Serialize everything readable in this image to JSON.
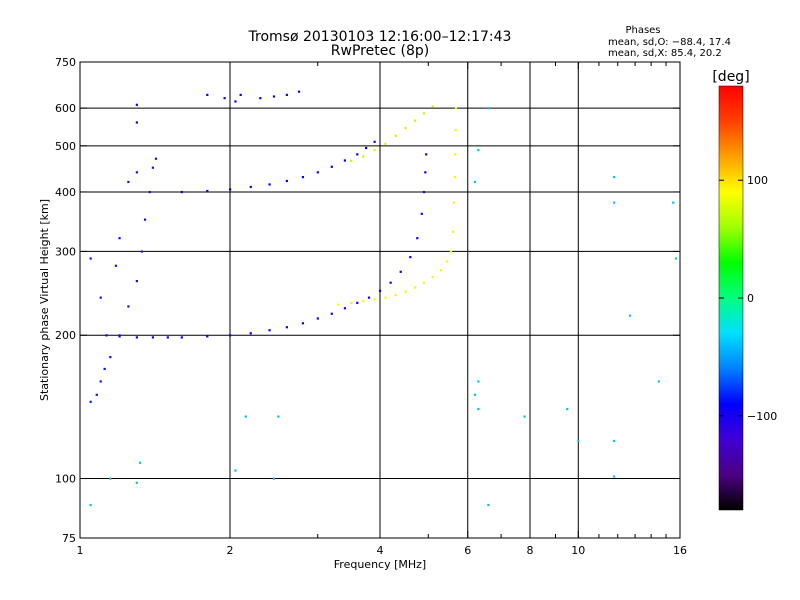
{
  "chart_data": {
    "type": "scatter",
    "title": "Tromsø 20130103 12:16:00–12:17:43",
    "subtitle": "RwPretec (8p)",
    "stats": {
      "heading": "Phases",
      "line1": "mean, sd,O: −88.4, 17.4",
      "line2": "mean, sd,X:  85.4, 20.2"
    },
    "xlabel": "Frequency [MHz]",
    "ylabel": "Stationary phase Virtual Height [km]",
    "x_scale": "log",
    "y_scale": "log",
    "xlim": [
      1,
      16
    ],
    "ylim": [
      75,
      750
    ],
    "x_ticks": [
      1,
      2,
      4,
      6,
      8,
      10,
      16
    ],
    "x_tick_labels": [
      "1",
      "2",
      "4",
      "6",
      "8",
      "10",
      "16"
    ],
    "x_grid": [
      2,
      4,
      6,
      8,
      10
    ],
    "x_minor_ticks": [
      3,
      5,
      7,
      9,
      11,
      12,
      13,
      14,
      15
    ],
    "y_ticks": [
      75,
      100,
      200,
      300,
      400,
      500,
      600,
      750
    ],
    "y_tick_labels": [
      "75",
      "100",
      "200",
      "300",
      "400",
      "500",
      "600",
      "750"
    ],
    "y_grid": [
      100,
      200,
      300,
      400,
      500,
      600
    ],
    "grid": true,
    "colorbar": {
      "label": "[deg]",
      "range": [
        -180,
        180
      ],
      "ticks": [
        -100,
        0,
        100
      ],
      "tick_labels": [
        "−100",
        "0",
        "100"
      ],
      "colormap": [
        "#000000",
        "#4b0082",
        "#3f00d6",
        "#0000ff",
        "#0080ff",
        "#00e0ff",
        "#00ff80",
        "#00ff00",
        "#a0ff00",
        "#ffff00",
        "#ffa000",
        "#ff4000",
        "#ff0000"
      ]
    },
    "series": [
      {
        "kind": "F-layer O-mode trace",
        "phase": -95,
        "points": [
          [
            1.13,
            200
          ],
          [
            1.2,
            199
          ],
          [
            1.3,
            198
          ],
          [
            1.4,
            198
          ],
          [
            1.5,
            198
          ],
          [
            1.6,
            198
          ],
          [
            1.8,
            199
          ],
          [
            2.0,
            200
          ],
          [
            2.2,
            202
          ],
          [
            2.4,
            205
          ],
          [
            2.6,
            208
          ],
          [
            2.8,
            212
          ],
          [
            3.0,
            217
          ],
          [
            3.2,
            222
          ],
          [
            3.4,
            228
          ],
          [
            3.6,
            234
          ],
          [
            3.8,
            240
          ],
          [
            4.0,
            248
          ],
          [
            4.2,
            258
          ],
          [
            4.4,
            272
          ],
          [
            4.6,
            292
          ],
          [
            4.75,
            320
          ],
          [
            4.85,
            360
          ],
          [
            4.9,
            400
          ],
          [
            4.93,
            440
          ],
          [
            4.95,
            480
          ]
        ]
      },
      {
        "kind": "F-layer X-mode trace",
        "phase": 85,
        "points": [
          [
            3.3,
            232
          ],
          [
            3.5,
            234
          ],
          [
            3.7,
            236
          ],
          [
            3.9,
            238
          ],
          [
            4.1,
            240
          ],
          [
            4.3,
            243
          ],
          [
            4.5,
            247
          ],
          [
            4.7,
            252
          ],
          [
            4.9,
            258
          ],
          [
            5.1,
            265
          ],
          [
            5.3,
            274
          ],
          [
            5.45,
            286
          ],
          [
            5.55,
            300
          ],
          [
            5.6,
            330
          ],
          [
            5.63,
            380
          ],
          [
            5.65,
            430
          ],
          [
            5.66,
            480
          ],
          [
            5.67,
            540
          ],
          [
            5.68,
            600
          ]
        ]
      },
      {
        "kind": "multiple-hop O-mode trace",
        "phase": -90,
        "points": [
          [
            1.6,
            400
          ],
          [
            1.8,
            402
          ],
          [
            2.0,
            405
          ],
          [
            2.2,
            410
          ],
          [
            2.4,
            415
          ],
          [
            2.6,
            422
          ],
          [
            2.8,
            430
          ],
          [
            3.0,
            440
          ],
          [
            3.2,
            452
          ],
          [
            3.4,
            466
          ],
          [
            3.6,
            480
          ],
          [
            3.75,
            495
          ],
          [
            3.9,
            510
          ]
        ]
      },
      {
        "kind": "multiple-hop X-mode trace",
        "phase": 70,
        "points": [
          [
            3.5,
            465
          ],
          [
            3.7,
            475
          ],
          [
            3.9,
            490
          ],
          [
            4.1,
            505
          ],
          [
            4.3,
            525
          ],
          [
            4.5,
            545
          ],
          [
            4.7,
            565
          ],
          [
            4.9,
            585
          ],
          [
            5.1,
            605
          ]
        ]
      },
      {
        "kind": "low-frequency spread echoes",
        "phase": -85,
        "points": [
          [
            1.05,
            145
          ],
          [
            1.08,
            150
          ],
          [
            1.1,
            160
          ],
          [
            1.12,
            170
          ],
          [
            1.15,
            180
          ],
          [
            1.2,
            200
          ],
          [
            1.25,
            230
          ],
          [
            1.3,
            260
          ],
          [
            1.33,
            300
          ],
          [
            1.35,
            350
          ],
          [
            1.38,
            400
          ],
          [
            1.4,
            450
          ],
          [
            1.42,
            470
          ],
          [
            1.3,
            440
          ],
          [
            1.25,
            420
          ],
          [
            1.2,
            320
          ],
          [
            1.18,
            280
          ],
          [
            1.1,
            240
          ],
          [
            1.05,
            290
          ]
        ]
      },
      {
        "kind": "upper echoes",
        "phase": -95,
        "points": [
          [
            1.8,
            640
          ],
          [
            1.95,
            630
          ],
          [
            2.05,
            620
          ],
          [
            2.1,
            640
          ],
          [
            2.3,
            630
          ],
          [
            2.45,
            635
          ],
          [
            2.6,
            640
          ],
          [
            2.75,
            650
          ],
          [
            1.3,
            610
          ],
          [
            1.3,
            560
          ]
        ]
      },
      {
        "kind": "scattered isolated points",
        "phase": -40,
        "points": [
          [
            1.05,
            88
          ],
          [
            1.15,
            100
          ],
          [
            1.3,
            98
          ],
          [
            1.32,
            108
          ],
          [
            2.05,
            104
          ],
          [
            2.45,
            100
          ],
          [
            2.15,
            135
          ],
          [
            2.5,
            135
          ],
          [
            6.2,
            150
          ],
          [
            6.3,
            140
          ],
          [
            6.3,
            160
          ],
          [
            6.6,
            88
          ],
          [
            7.8,
            135
          ],
          [
            9.5,
            140
          ],
          [
            10,
            120
          ],
          [
            11.8,
            120
          ],
          [
            11.8,
            101
          ],
          [
            11.8,
            380
          ],
          [
            11.8,
            430
          ],
          [
            12.7,
            220
          ],
          [
            14.5,
            160
          ],
          [
            15.7,
            290
          ],
          [
            15.5,
            380
          ],
          [
            6.2,
            420
          ],
          [
            6.6,
            600
          ],
          [
            6.3,
            490
          ]
        ]
      }
    ]
  }
}
